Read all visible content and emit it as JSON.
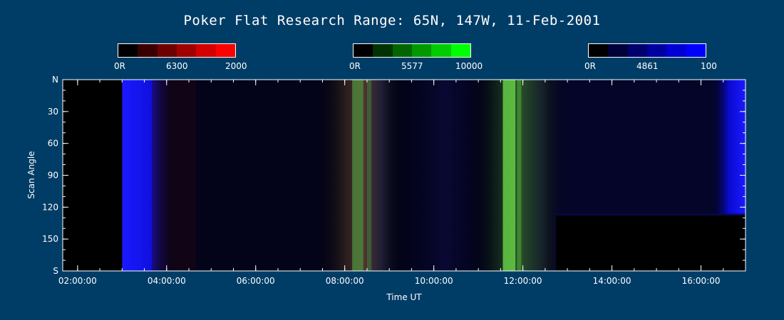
{
  "title": "Poker Flat Research Range: 65N, 147W, 11-Feb-2001",
  "colorbars": [
    {
      "name": "red",
      "min_label": "0R",
      "wavelength": "6300",
      "max_label": "2000",
      "colors": [
        "#000000",
        "#3a0000",
        "#6e0000",
        "#a10000",
        "#d40000",
        "#ff0000"
      ]
    },
    {
      "name": "green",
      "min_label": "0R",
      "wavelength": "5577",
      "max_label": "10000",
      "colors": [
        "#000000",
        "#003300",
        "#006600",
        "#009900",
        "#00cc00",
        "#00ff00"
      ]
    },
    {
      "name": "blue",
      "min_label": "0R",
      "wavelength": "4861",
      "max_label": "100",
      "colors": [
        "#000000",
        "#00003a",
        "#00006e",
        "#0000a1",
        "#0000d4",
        "#0000ff"
      ]
    }
  ],
  "chart_data": {
    "type": "heatmap",
    "xlabel": "Time UT",
    "ylabel": "Scan Angle",
    "xlim": [
      "01:40:00",
      "17:00:00"
    ],
    "ylim": [
      "N",
      "S"
    ],
    "x_ticks": [
      "02:00:00",
      "04:00:00",
      "06:00:00",
      "08:00:00",
      "10:00:00",
      "12:00:00",
      "14:00:00",
      "16:00:00"
    ],
    "y_ticks": [
      "N",
      "30",
      "60",
      "90",
      "120",
      "150",
      "S"
    ],
    "y_tick_values": [
      0,
      30,
      60,
      90,
      120,
      150,
      180
    ],
    "channels": [
      "6300 (red)",
      "5577 (green)",
      "4861 (blue)"
    ],
    "features": [
      {
        "time_start": "01:40",
        "time_end": "03:00",
        "description": "no data"
      },
      {
        "time_start": "03:00",
        "time_end": "03:35",
        "channel": "4861",
        "level": "bright"
      },
      {
        "time_start": "07:30",
        "time_end": "09:00",
        "channel": "6300/5577",
        "level": "medium"
      },
      {
        "time_start": "08:10",
        "time_end": "08:35",
        "channel": "5577",
        "level": "arc"
      },
      {
        "time_start": "11:20",
        "time_end": "12:40",
        "channel": "5577",
        "level": "bright arc"
      },
      {
        "time_start": "12:45",
        "time_end": "17:00",
        "scan_from": 127,
        "scan_to": 180,
        "description": "no data"
      },
      {
        "time_start": "16:30",
        "time_end": "17:00",
        "channel": "4861",
        "level": "bright"
      }
    ]
  }
}
